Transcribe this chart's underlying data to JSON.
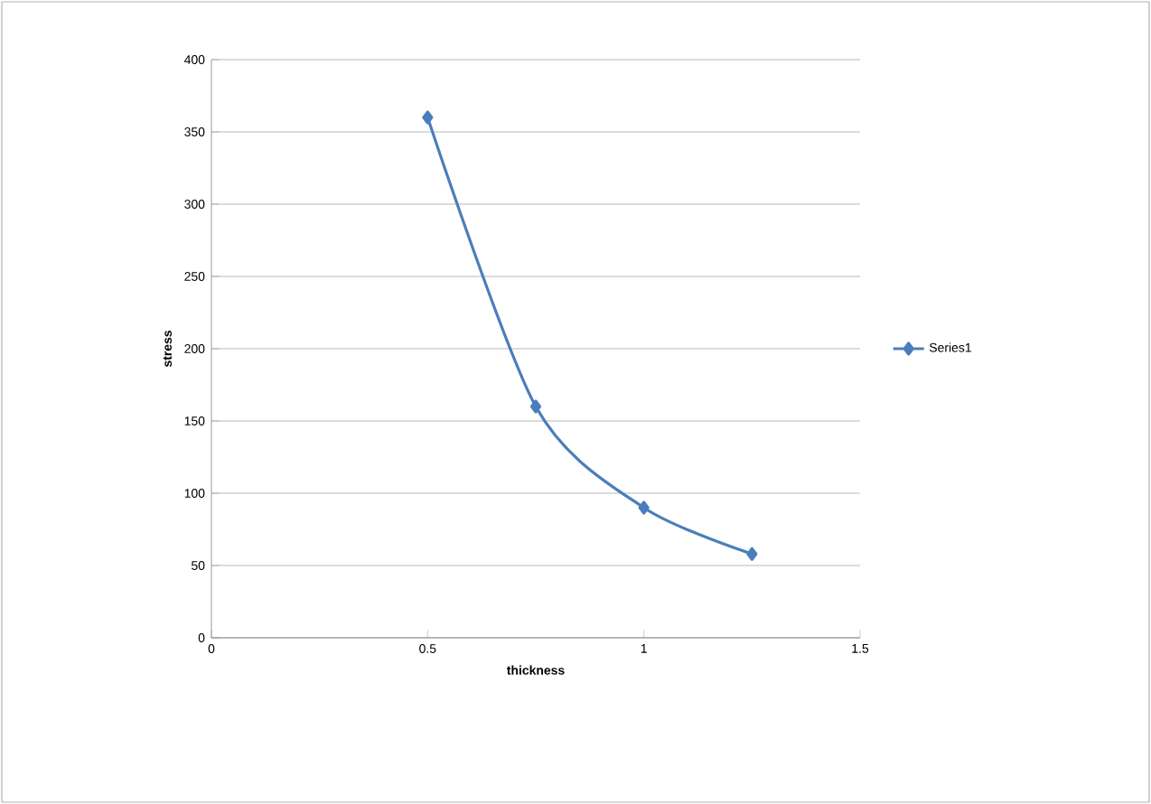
{
  "chart_data": {
    "type": "line",
    "xlabel": "thickness",
    "ylabel": "stress",
    "x": [
      0.5,
      0.75,
      1,
      1.25
    ],
    "series": [
      {
        "name": "Series1",
        "color": "#4a7ebb",
        "values": [
          360,
          160,
          90,
          58
        ]
      }
    ],
    "xlim": [
      0,
      1.5
    ],
    "xticks": [
      0,
      0.5,
      1,
      1.5
    ],
    "ylim": [
      0,
      400
    ],
    "yticks": [
      0,
      50,
      100,
      150,
      200,
      250,
      300,
      350,
      400
    ],
    "grid": "y",
    "legend": "right",
    "marker": "diamond",
    "line_style": "solid"
  }
}
